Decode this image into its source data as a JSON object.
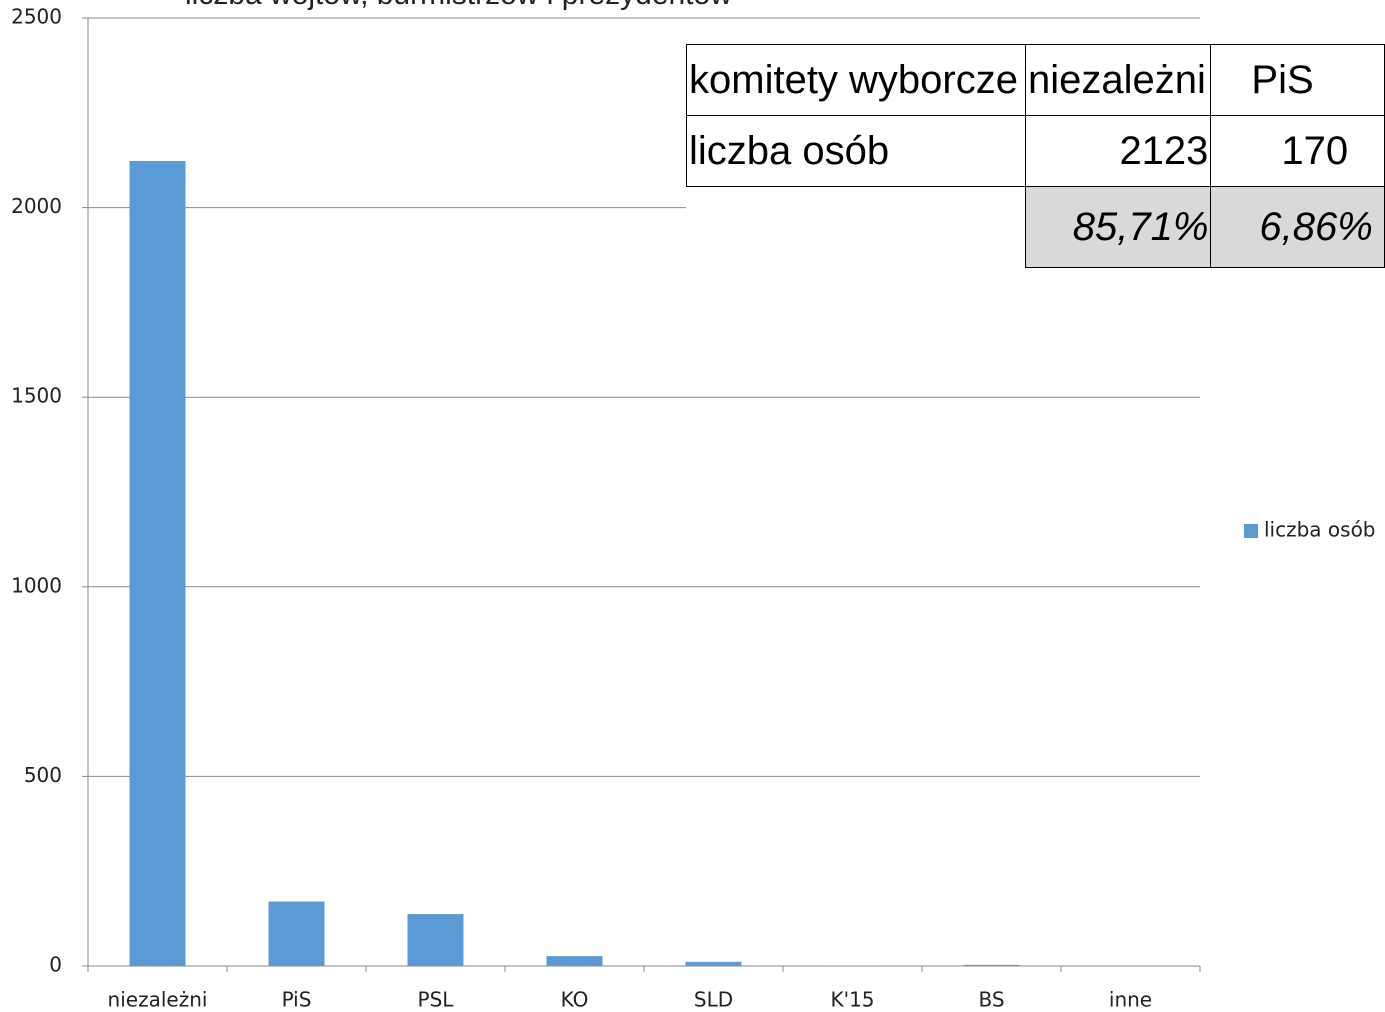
{
  "chart_data": {
    "type": "bar",
    "title": "liczba wójtów, burmistrzów i prezydentów",
    "categories": [
      "niezależni",
      "PiS",
      "PSL",
      "KO",
      "SLD",
      "K'15",
      "BS",
      "inne"
    ],
    "series": [
      {
        "name": "liczba osób",
        "color": "#5b9bd5",
        "values": [
          2123,
          170,
          137,
          26,
          11,
          1,
          3,
          0
        ]
      }
    ],
    "ylim": [
      0,
      2500
    ],
    "yticks": [
      0,
      500,
      1000,
      1500,
      2000,
      2500
    ],
    "grid": true,
    "legend": "right"
  },
  "table": {
    "rows": [
      [
        "komitety wyborcze",
        "niezależni",
        "PiS"
      ],
      [
        "liczba osób",
        "2123",
        "170"
      ]
    ],
    "shares": [
      "85,71%",
      "6,86%"
    ]
  }
}
